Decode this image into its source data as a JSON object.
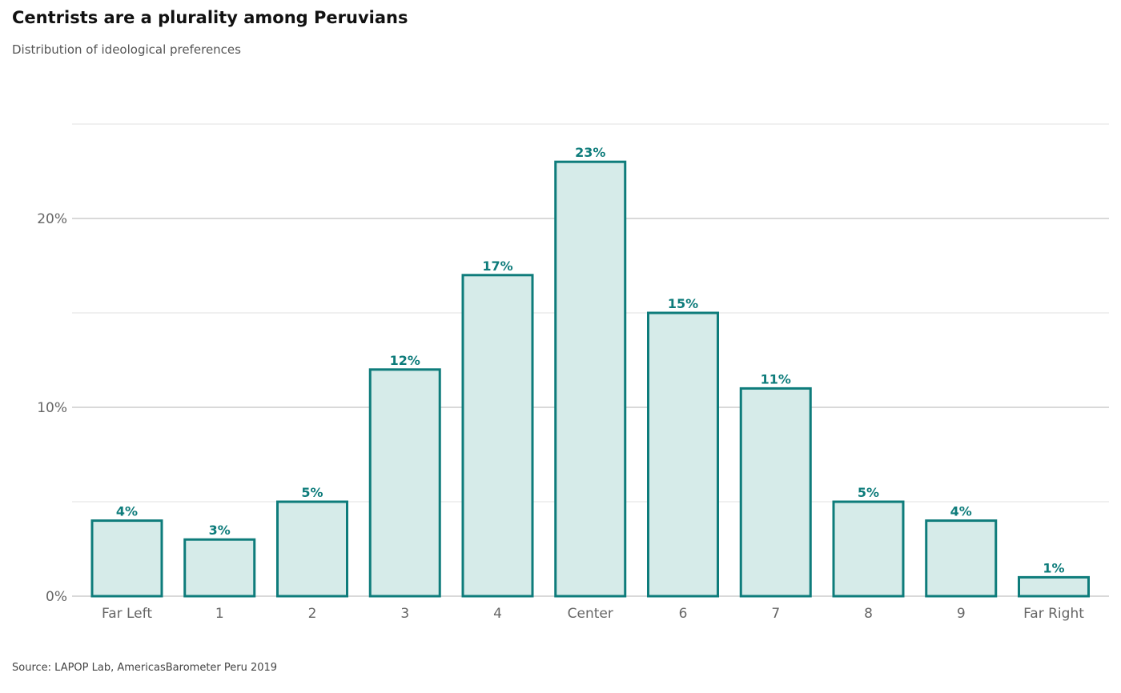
{
  "title": "Centrists are a plurality among Peruvians",
  "subtitle": "Distribution of ideological preferences",
  "source": "Source: LAPOP Lab, AmericasBarometer Peru 2019",
  "colors": {
    "bar_fill": "#d6ebe9",
    "bar_stroke": "#0e7c7b",
    "label": "#0e7c7b",
    "major_grid": "#d9d9d9",
    "minor_grid": "#e6e6e6",
    "axis_text": "#666666"
  },
  "chart_data": {
    "type": "bar",
    "categories": [
      "Far Left",
      "1",
      "2",
      "3",
      "4",
      "Center",
      "6",
      "7",
      "8",
      "9",
      "Far Right"
    ],
    "values": [
      4,
      3,
      5,
      12,
      17,
      23,
      15,
      11,
      5,
      4,
      1
    ],
    "data_labels": [
      "4%",
      "3%",
      "5%",
      "12%",
      "17%",
      "23%",
      "15%",
      "11%",
      "5%",
      "4%",
      "1%"
    ],
    "title": "Centrists are a plurality among Peruvians",
    "subtitle": "Distribution of ideological preferences",
    "xlabel": "",
    "ylabel": "",
    "ylim": [
      0,
      25
    ],
    "y_ticks": [
      0,
      10,
      20
    ],
    "y_tick_labels": [
      "0%",
      "10%",
      "20%"
    ],
    "minor_grid_values": [
      5,
      15,
      25
    ],
    "grid": true,
    "legend": "none"
  }
}
